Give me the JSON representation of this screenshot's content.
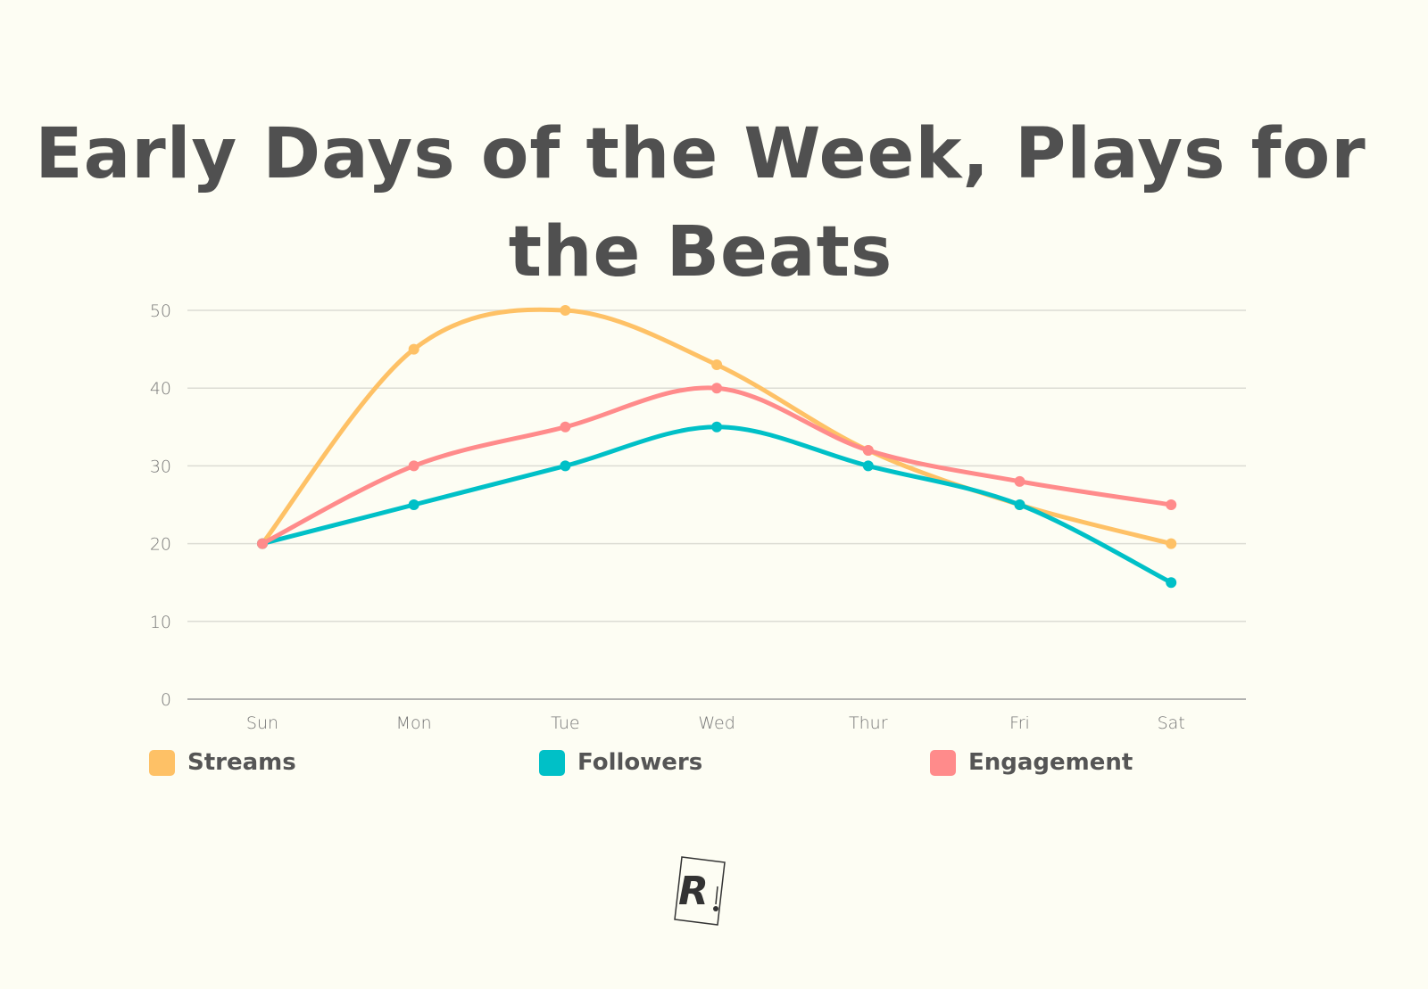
{
  "chart_data": {
    "type": "line",
    "title": "Early Days of the Week, Plays for the Beats",
    "categories": [
      "Sun",
      "Mon",
      "Tue",
      "Wed",
      "Thur",
      "Fri",
      "Sat"
    ],
    "ylim": [
      0,
      50
    ],
    "yticks": [
      0,
      10,
      20,
      30,
      40,
      50
    ],
    "grid": true,
    "legend_position": "bottom",
    "series": [
      {
        "name": "Streams",
        "color": "#fec166",
        "values": [
          20,
          45,
          50,
          43,
          32,
          25,
          20
        ]
      },
      {
        "name": "Followers",
        "color": "#00c0c7",
        "values": [
          20,
          25,
          30,
          35,
          30,
          25,
          15
        ]
      },
      {
        "name": "Engagement",
        "color": "#ff8b8b",
        "values": [
          20,
          30,
          35,
          40,
          32,
          28,
          25
        ]
      }
    ]
  },
  "logo": {
    "text": "R."
  }
}
